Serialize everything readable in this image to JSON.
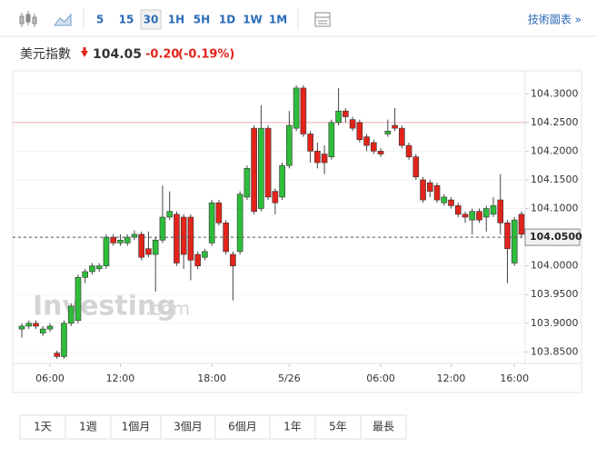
{
  "toolbar": {
    "intervals": [
      "5",
      "15",
      "30",
      "1H",
      "5H",
      "1D",
      "1W",
      "1M"
    ],
    "active": "30",
    "chart_link": "技術圖表 »"
  },
  "header": {
    "name": "美元指數",
    "price": "104.05",
    "change": "-0.20",
    "change_pct": "(-0.19%)"
  },
  "watermark": {
    "brand": "Investing",
    "suffix": ".com"
  },
  "range_buttons": [
    "1天",
    "1週",
    "1個月",
    "3個月",
    "6個月",
    "1年",
    "5年",
    "最長"
  ],
  "chart_data": {
    "type": "candlestick",
    "categories": [
      null,
      null,
      null,
      null,
      "06:00",
      null,
      null,
      null,
      null,
      null,
      null,
      null,
      null,
      null,
      "12:00",
      null,
      null,
      null,
      null,
      null,
      null,
      null,
      null,
      null,
      null,
      null,
      null,
      "18:00",
      null,
      null,
      null,
      null,
      null,
      null,
      null,
      null,
      null,
      null,
      "5/26",
      null,
      null,
      null,
      null,
      null,
      null,
      null,
      null,
      null,
      null,
      null,
      null,
      "06:00",
      null,
      null,
      null,
      null,
      null,
      null,
      null,
      null,
      null,
      "12:00",
      null,
      null,
      null,
      null,
      null,
      null,
      null,
      null,
      "16:00",
      null
    ],
    "open": [
      103.89,
      103.895,
      103.9,
      103.883,
      103.89,
      103.848,
      103.842,
      103.9,
      103.905,
      103.98,
      103.99,
      103.995,
      104.0,
      104.05,
      104.04,
      104.04,
      104.05,
      104.055,
      104.03,
      104.02,
      104.045,
      104.085,
      104.09,
      104.085,
      104.085,
      104.02,
      104.015,
      104.04,
      104.11,
      104.075,
      104.02,
      104.025,
      104.12,
      104.24,
      104.1,
      104.24,
      104.13,
      104.12,
      104.175,
      104.24,
      104.31,
      104.23,
      104.2,
      104.195,
      104.19,
      104.25,
      104.27,
      104.255,
      104.25,
      104.225,
      104.215,
      104.2,
      104.23,
      104.245,
      104.24,
      104.21,
      104.19,
      104.15,
      104.145,
      104.14,
      104.11,
      104.115,
      104.105,
      104.09,
      104.08,
      104.095,
      104.085,
      104.09,
      104.115,
      104.075,
      104.005,
      104.09
    ],
    "high": [
      103.9,
      103.905,
      103.905,
      103.895,
      103.9,
      103.852,
      103.905,
      103.935,
      103.985,
      103.995,
      104.005,
      104.005,
      104.055,
      104.055,
      104.055,
      104.055,
      104.062,
      104.06,
      104.06,
      104.05,
      104.14,
      104.13,
      104.095,
      104.09,
      104.09,
      104.025,
      104.03,
      104.115,
      104.115,
      104.08,
      104.025,
      104.13,
      104.175,
      104.245,
      104.28,
      104.245,
      104.135,
      104.18,
      104.27,
      104.315,
      104.315,
      104.235,
      104.215,
      104.21,
      104.255,
      104.31,
      104.275,
      104.26,
      104.255,
      104.23,
      104.22,
      104.205,
      104.255,
      104.275,
      104.245,
      104.215,
      104.195,
      104.155,
      104.15,
      104.145,
      104.125,
      104.12,
      104.11,
      104.095,
      104.1,
      104.1,
      104.105,
      104.12,
      104.16,
      104.08,
      104.085,
      104.095
    ],
    "low": [
      103.875,
      103.89,
      103.89,
      103.878,
      103.885,
      103.838,
      103.838,
      103.895,
      103.9,
      103.97,
      103.985,
      103.99,
      103.995,
      104.035,
      104.035,
      104.035,
      104.045,
      104.01,
      104.015,
      103.955,
      104.04,
      104.08,
      104.0,
      103.995,
      103.975,
      103.995,
      104.01,
      104.035,
      104.07,
      104.02,
      103.94,
      104.02,
      104.115,
      104.09,
      104.095,
      104.115,
      104.09,
      104.115,
      104.17,
      104.235,
      104.225,
      104.18,
      104.17,
      104.16,
      104.185,
      104.245,
      104.25,
      104.235,
      104.215,
      104.2,
      104.195,
      104.19,
      104.225,
      104.235,
      104.205,
      104.185,
      104.15,
      104.11,
      104.12,
      104.11,
      104.105,
      104.1,
      104.085,
      104.075,
      104.055,
      104.075,
      104.06,
      104.085,
      104.055,
      103.97,
      104.0,
      104.05
    ],
    "close": [
      103.895,
      103.9,
      103.895,
      103.89,
      103.895,
      103.842,
      103.9,
      103.93,
      103.98,
      103.99,
      104.0,
      104.0,
      104.05,
      104.04,
      104.045,
      104.05,
      104.055,
      104.015,
      104.02,
      104.045,
      104.085,
      104.095,
      104.005,
      104.02,
      104.01,
      104.0,
      104.025,
      104.11,
      104.075,
      104.025,
      104.0,
      104.125,
      104.17,
      104.095,
      104.24,
      104.12,
      104.11,
      104.175,
      104.245,
      104.31,
      104.23,
      104.2,
      104.18,
      104.18,
      104.25,
      104.27,
      104.26,
      104.24,
      104.22,
      104.21,
      104.2,
      104.195,
      104.235,
      104.24,
      104.21,
      104.19,
      104.155,
      104.115,
      104.13,
      104.115,
      104.12,
      104.105,
      104.09,
      104.085,
      104.095,
      104.08,
      104.1,
      104.105,
      104.075,
      104.03,
      104.08,
      104.055
    ],
    "up_color": "#2ebd3a",
    "down_color": "#e2241b",
    "ylim": [
      103.83,
      104.34
    ],
    "yticks": [
      {
        "value": 103.85,
        "label": "103.8500"
      },
      {
        "value": 103.9,
        "label": "103.9000"
      },
      {
        "value": 103.95,
        "label": "103.9500"
      },
      {
        "value": 104.0,
        "label": "104.0000"
      },
      {
        "value": 104.05,
        "label": "104.0500"
      },
      {
        "value": 104.1,
        "label": "104.1000"
      },
      {
        "value": 104.15,
        "label": "104.1500"
      },
      {
        "value": 104.2,
        "label": "104.2000"
      },
      {
        "value": 104.25,
        "label": "104.2500"
      },
      {
        "value": 104.3,
        "label": "104.3000"
      }
    ],
    "last_price": {
      "value": 104.05,
      "label": "104.0500"
    },
    "prev_close": 104.25,
    "grid": true
  }
}
